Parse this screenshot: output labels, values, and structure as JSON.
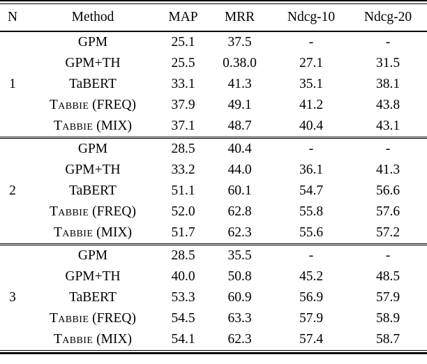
{
  "page": {
    "background_color": "#ffffff",
    "text_color": "#000000",
    "rule_color": "#000000"
  },
  "table": {
    "columns": [
      "N",
      "Method",
      "MAP",
      "MRR",
      "Ndcg-10",
      "Ndcg-20"
    ],
    "value_keys": [
      "map",
      "mrr",
      "ndcg10",
      "ndcg20"
    ],
    "groups": [
      {
        "n": "1",
        "rows": [
          {
            "method": [
              {
                "t": "GPM"
              }
            ],
            "values": [
              "25.1",
              "37.5",
              "-",
              "-"
            ],
            "bold": false
          },
          {
            "method": [
              {
                "t": "GPM+TH"
              }
            ],
            "values": [
              "25.5",
              "0.38.0",
              "27.1",
              "31.5"
            ],
            "bold": false
          },
          {
            "method": [
              {
                "t": "TaBERT"
              }
            ],
            "values": [
              "33.1",
              "41.3",
              "35.1",
              "38.1"
            ],
            "bold": false
          },
          {
            "method": [
              {
                "t": "Tabbie",
                "sc": true
              },
              {
                "t": " (FREQ)"
              }
            ],
            "values": [
              "37.9",
              "49.1",
              "41.2",
              "43.8"
            ],
            "bold": true
          },
          {
            "method": [
              {
                "t": "Tabbie",
                "sc": true
              },
              {
                "t": " (MIX)"
              }
            ],
            "values": [
              "37.1",
              "48.7",
              "40.4",
              "43.1"
            ],
            "bold": false
          }
        ]
      },
      {
        "n": "2",
        "rows": [
          {
            "method": [
              {
                "t": "GPM"
              }
            ],
            "values": [
              "28.5",
              "40.4",
              "-",
              "-"
            ],
            "bold": false
          },
          {
            "method": [
              {
                "t": "GPM+TH"
              }
            ],
            "values": [
              "33.2",
              "44.0",
              "36.1",
              "41.3"
            ],
            "bold": false
          },
          {
            "method": [
              {
                "t": "TaBERT"
              }
            ],
            "values": [
              "51.1",
              "60.1",
              "54.7",
              "56.6"
            ],
            "bold": false
          },
          {
            "method": [
              {
                "t": "Tabbie",
                "sc": true
              },
              {
                "t": " (FREQ)"
              }
            ],
            "values": [
              "52.0",
              "62.8",
              "55.8",
              "57.6"
            ],
            "bold": true
          },
          {
            "method": [
              {
                "t": "Tabbie",
                "sc": true
              },
              {
                "t": " (MIX)"
              }
            ],
            "values": [
              "51.7",
              "62.3",
              "55.6",
              "57.2"
            ],
            "bold": false
          }
        ]
      },
      {
        "n": "3",
        "rows": [
          {
            "method": [
              {
                "t": "GPM"
              }
            ],
            "values": [
              "28.5",
              "35.5",
              "-",
              "-"
            ],
            "bold": false
          },
          {
            "method": [
              {
                "t": "GPM+TH"
              }
            ],
            "values": [
              "40.0",
              "50.8",
              "45.2",
              "48.5"
            ],
            "bold": false
          },
          {
            "method": [
              {
                "t": "TaBERT"
              }
            ],
            "values": [
              "53.3",
              "60.9",
              "56.9",
              "57.9"
            ],
            "bold": false
          },
          {
            "method": [
              {
                "t": "Tabbie",
                "sc": true
              },
              {
                "t": " (FREQ)"
              }
            ],
            "values": [
              "54.5",
              "63.3",
              "57.9",
              "58.9"
            ],
            "bold": true
          },
          {
            "method": [
              {
                "t": "Tabbie",
                "sc": true
              },
              {
                "t": " (MIX)"
              }
            ],
            "values": [
              "54.1",
              "62.3",
              "57.4",
              "58.7"
            ],
            "bold": false
          }
        ]
      }
    ]
  }
}
